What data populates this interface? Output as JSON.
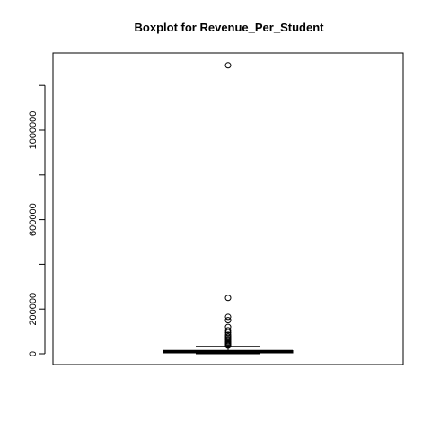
{
  "chart_data": {
    "type": "boxplot",
    "title": "Boxplot for  Revenue_Per_Student",
    "xlabel": "",
    "ylabel": "",
    "ylim": [
      -50000,
      1350000
    ],
    "y_ticks": [
      0,
      200000,
      400000,
      600000,
      800000,
      1000000,
      1200000
    ],
    "y_tick_labels": [
      "0",
      "200000",
      "",
      "600000",
      "",
      "1000000",
      ""
    ],
    "grid": false,
    "box": {
      "whisker_low": 0,
      "q1": 4000,
      "median": 11000,
      "q3": 14000,
      "whisker_high": 33000
    },
    "outliers": [
      1290000,
      250000,
      165000,
      150000,
      120000,
      105000,
      95000,
      85000,
      78000,
      72000,
      66000,
      60000,
      55000,
      50000,
      46000,
      42000,
      38000,
      36000
    ]
  }
}
